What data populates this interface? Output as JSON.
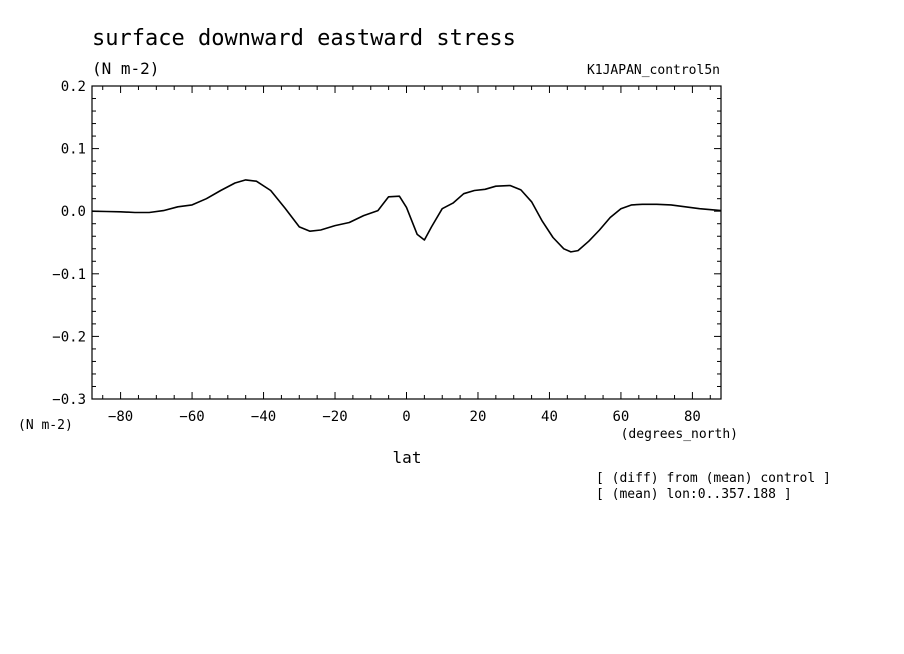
{
  "chart_data": {
    "type": "line",
    "title": "surface downward eastward stress",
    "units_top": "(N m-2)",
    "dataset": "K1JAPAN_control5n",
    "ylabel": "(N m-2)",
    "xlabel": "lat",
    "x_units": "(degrees_north)",
    "notes": [
      "[ (diff) from (mean) control ]",
      "[ (mean) lon:0..357.188 ]"
    ],
    "xlim": [
      -88,
      88
    ],
    "ylim": [
      -0.3,
      0.2
    ],
    "x_ticks": [
      -80,
      -60,
      -40,
      -20,
      0,
      20,
      40,
      60,
      80
    ],
    "x_tick_labels": [
      "−80",
      "−60",
      "−40",
      "−20",
      "0",
      "20",
      "40",
      "60",
      "80"
    ],
    "y_ticks": [
      0.2,
      0.1,
      0.0,
      -0.1,
      -0.2,
      -0.3
    ],
    "y_tick_labels": [
      "0.2",
      "0.1",
      "0.0",
      "−0.1",
      "−0.2",
      "−0.3"
    ],
    "grid": false,
    "series": [
      {
        "x": [
          -88,
          -84,
          -80,
          -76,
          -72,
          -68,
          -64,
          -60,
          -56,
          -52,
          -48,
          -45,
          -42,
          -38,
          -34,
          -30,
          -27,
          -24,
          -20,
          -16,
          -12,
          -8,
          -5,
          -2,
          0,
          3,
          5,
          7,
          10,
          13,
          16,
          19,
          22,
          25,
          29,
          32,
          35,
          38,
          41,
          44,
          46,
          48,
          51,
          54,
          57,
          60,
          63,
          66,
          70,
          74,
          78,
          82,
          86,
          88
        ],
        "y": [
          0.0,
          -0.0005,
          -0.001,
          -0.002,
          -0.002,
          0.001,
          0.007,
          0.01,
          0.02,
          0.033,
          0.045,
          0.05,
          0.048,
          0.033,
          0.005,
          -0.025,
          -0.032,
          -0.03,
          -0.023,
          -0.018,
          -0.007,
          0.001,
          0.023,
          0.024,
          0.006,
          -0.037,
          -0.046,
          -0.025,
          0.004,
          0.013,
          0.028,
          0.033,
          0.035,
          0.04,
          0.041,
          0.034,
          0.015,
          -0.016,
          -0.042,
          -0.06,
          -0.065,
          -0.063,
          -0.048,
          -0.03,
          -0.01,
          0.004,
          0.01,
          0.011,
          0.011,
          0.01,
          0.007,
          0.004,
          0.002,
          0.001
        ]
      }
    ]
  }
}
